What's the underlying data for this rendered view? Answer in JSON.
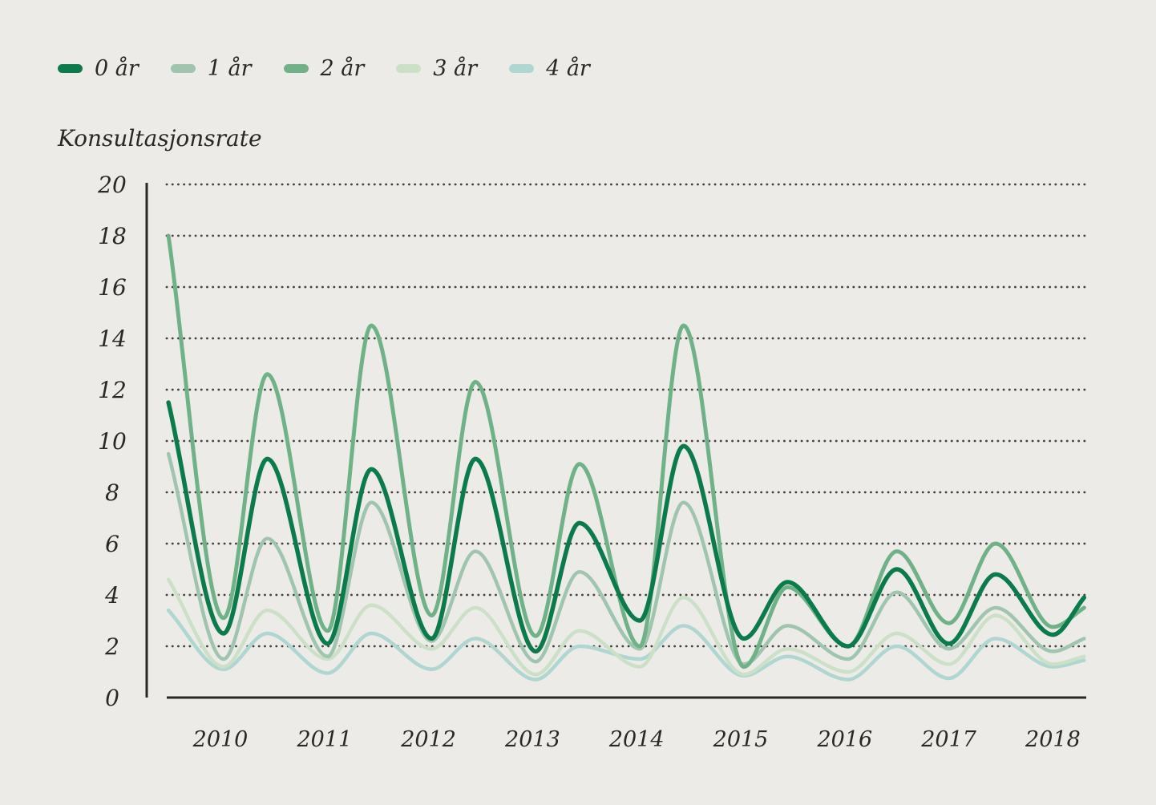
{
  "page": {
    "background": "#edebe8",
    "text_color": "#2b2824",
    "axis_color": "#2b2824",
    "grid_dot_color": "#45413d"
  },
  "legend": {
    "items": [
      {
        "label": "0 år",
        "color": "#0b7b4c"
      },
      {
        "label": "1 år",
        "color": "#9fc5af"
      },
      {
        "label": "2 år",
        "color": "#70b287"
      },
      {
        "label": "3 år",
        "color": "#cce0c7"
      },
      {
        "label": "4 år",
        "color": "#afd6d1"
      }
    ]
  },
  "chart_data": {
    "type": "line",
    "title": "Konsultasjonsrate",
    "xlabel": "",
    "ylabel": "Konsultasjonsrate",
    "grid": "dotted-horizontal",
    "legend_position": "top-left",
    "ylim": [
      0,
      20
    ],
    "yticks": [
      0,
      2,
      4,
      6,
      8,
      10,
      12,
      14,
      16,
      18,
      20
    ],
    "xticks": [
      "2010",
      "2011",
      "2012",
      "2013",
      "2014",
      "2015",
      "2016",
      "2017",
      "2018"
    ],
    "xtick_years": [
      2010,
      2011,
      2012,
      2013,
      2014,
      2015,
      2016,
      2017,
      2018
    ],
    "x": [
      2009.5,
      2010.03,
      2010.45,
      2011.03,
      2011.45,
      2012.03,
      2012.45,
      2013.03,
      2013.45,
      2014.03,
      2014.45,
      2015.03,
      2015.45,
      2016.03,
      2016.5,
      2017.0,
      2017.45,
      2018.0,
      2018.3
    ],
    "series": [
      {
        "name": "0 år",
        "color": "#0b7b4c",
        "width": 5.5,
        "values": [
          11.5,
          2.5,
          9.3,
          2.1,
          8.9,
          2.3,
          9.3,
          1.8,
          6.8,
          3.0,
          9.8,
          2.3,
          4.5,
          2.0,
          5.0,
          2.1,
          4.8,
          2.45,
          3.9
        ]
      },
      {
        "name": "1 år",
        "color": "#9fc5af",
        "width": 4.5,
        "values": [
          9.5,
          1.5,
          6.2,
          1.6,
          7.6,
          2.2,
          5.7,
          1.4,
          4.9,
          1.9,
          7.6,
          1.3,
          2.8,
          1.5,
          4.1,
          1.9,
          3.5,
          1.8,
          2.3
        ]
      },
      {
        "name": "2 år",
        "color": "#70b287",
        "width": 5,
        "values": [
          18.0,
          3.1,
          12.6,
          2.6,
          14.5,
          3.2,
          12.3,
          2.4,
          9.1,
          2.0,
          14.5,
          1.2,
          4.3,
          2.0,
          5.7,
          2.9,
          6.0,
          2.75,
          3.5
        ]
      },
      {
        "name": "3 år",
        "color": "#cce0c7",
        "width": 4.5,
        "values": [
          4.6,
          1.2,
          3.4,
          1.5,
          3.6,
          1.9,
          3.5,
          0.9,
          2.6,
          1.2,
          3.9,
          0.9,
          1.9,
          1.0,
          2.5,
          1.3,
          3.2,
          1.3,
          1.6
        ]
      },
      {
        "name": "4 år",
        "color": "#afd6d1",
        "width": 4.5,
        "values": [
          3.4,
          1.1,
          2.5,
          0.95,
          2.5,
          1.1,
          2.3,
          0.7,
          2.0,
          1.5,
          2.8,
          0.85,
          1.6,
          0.7,
          2.0,
          0.75,
          2.3,
          1.2,
          1.45
        ]
      }
    ],
    "draw_order": [
      4,
      3,
      1,
      2,
      0
    ]
  }
}
